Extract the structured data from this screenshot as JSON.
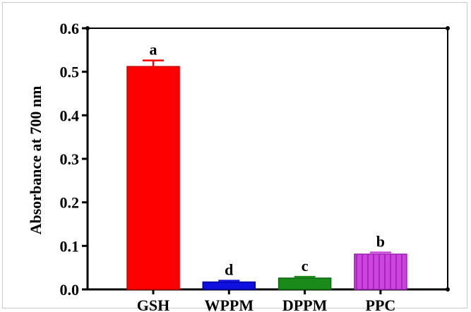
{
  "chart_data": {
    "type": "bar",
    "title": "",
    "xlabel": "",
    "ylabel": "Absorbance at 700 nm",
    "ylim": [
      0,
      0.6
    ],
    "yticks": [
      "0.0",
      "0.1",
      "0.2",
      "0.3",
      "0.4",
      "0.5",
      "0.6"
    ],
    "categories": [
      "GSH",
      "WPPM",
      "DPPM",
      "PPC"
    ],
    "values": [
      0.512,
      0.017,
      0.026,
      0.081
    ],
    "errors": [
      0.014,
      0.003,
      0.003,
      0.004
    ],
    "significance": [
      "a",
      "d",
      "c",
      "b"
    ],
    "colors": [
      "#ff0000",
      "#1010e0",
      "#1a8a1a",
      "#cc44dd"
    ],
    "edge_colors": [
      "#cc0000",
      "#0000a0",
      "#0f6a0f",
      "#9a1fb0"
    ],
    "error_colors": [
      "#ff0000",
      "#1010e0",
      "#1a8a1a",
      "#cc44dd"
    ],
    "hatched": [
      false,
      false,
      false,
      true
    ],
    "grid": false,
    "legend": "none"
  }
}
